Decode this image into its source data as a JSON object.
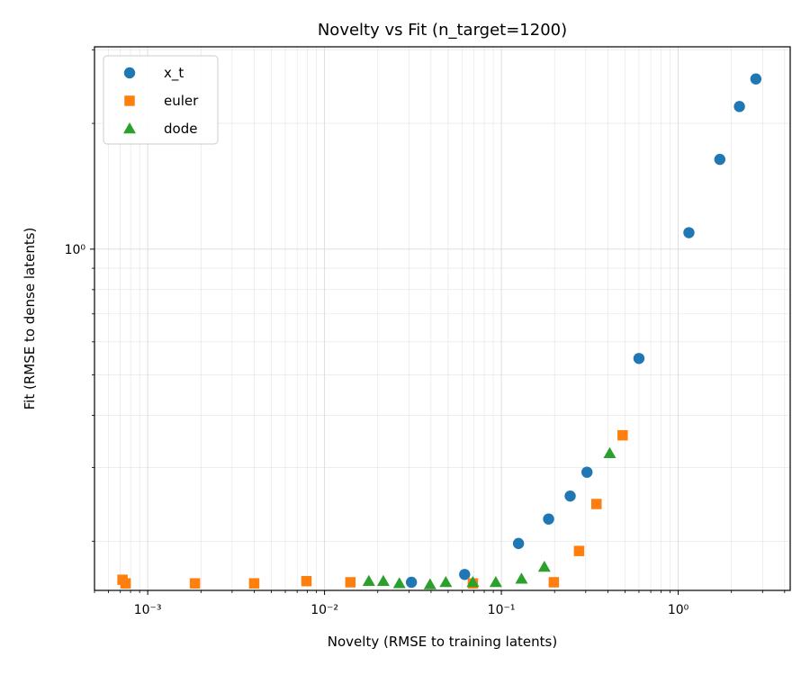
{
  "chart_data": {
    "type": "scatter",
    "title": "Novelty vs Fit (n_target=1200)",
    "xlabel": "Novelty (RMSE to training latents)",
    "ylabel": "Fit (RMSE to dense latents)",
    "xscale": "log",
    "yscale": "log",
    "xlim": [
      0.0005,
      4.3
    ],
    "ylim": [
      0.1525,
      3.05
    ],
    "grid": true,
    "legend_position": "top-left",
    "x_ticks": [
      {
        "value": 0.001,
        "label": "10⁻³"
      },
      {
        "value": 0.01,
        "label": "10⁻²"
      },
      {
        "value": 0.1,
        "label": "10⁻¹"
      },
      {
        "value": 1,
        "label": "10⁰"
      }
    ],
    "y_ticks": [
      {
        "value": 1,
        "label": "10⁰"
      }
    ],
    "series": [
      {
        "name": "x_t",
        "marker": "circle",
        "color": "#1f77b4",
        "points": [
          {
            "x": 0.031,
            "y": 0.1595
          },
          {
            "x": 0.062,
            "y": 0.1665
          },
          {
            "x": 0.125,
            "y": 0.1975
          },
          {
            "x": 0.185,
            "y": 0.226
          },
          {
            "x": 0.245,
            "y": 0.2565
          },
          {
            "x": 0.305,
            "y": 0.2925
          },
          {
            "x": 0.6,
            "y": 0.5475
          },
          {
            "x": 1.15,
            "y": 1.095
          },
          {
            "x": 1.72,
            "y": 1.64
          },
          {
            "x": 2.22,
            "y": 2.195
          },
          {
            "x": 2.75,
            "y": 2.555
          }
        ]
      },
      {
        "name": "euler",
        "marker": "square",
        "color": "#ff7f0e",
        "points": [
          {
            "x": 0.00072,
            "y": 0.1617
          },
          {
            "x": 0.00075,
            "y": 0.1585
          },
          {
            "x": 0.00185,
            "y": 0.1585
          },
          {
            "x": 0.004,
            "y": 0.1585
          },
          {
            "x": 0.0079,
            "y": 0.1605
          },
          {
            "x": 0.014,
            "y": 0.1595
          },
          {
            "x": 0.069,
            "y": 0.1585
          },
          {
            "x": 0.198,
            "y": 0.1595
          },
          {
            "x": 0.275,
            "y": 0.1895
          },
          {
            "x": 0.345,
            "y": 0.2455
          },
          {
            "x": 0.485,
            "y": 0.3585
          }
        ]
      },
      {
        "name": "dode",
        "marker": "triangle",
        "color": "#2ca02c",
        "points": [
          {
            "x": 0.0178,
            "y": 0.1605
          },
          {
            "x": 0.0215,
            "y": 0.1605
          },
          {
            "x": 0.0265,
            "y": 0.1585
          },
          {
            "x": 0.0395,
            "y": 0.1575
          },
          {
            "x": 0.0485,
            "y": 0.1595
          },
          {
            "x": 0.069,
            "y": 0.1595
          },
          {
            "x": 0.093,
            "y": 0.1595
          },
          {
            "x": 0.13,
            "y": 0.1625
          },
          {
            "x": 0.175,
            "y": 0.1735
          },
          {
            "x": 0.41,
            "y": 0.3245
          }
        ]
      }
    ]
  }
}
